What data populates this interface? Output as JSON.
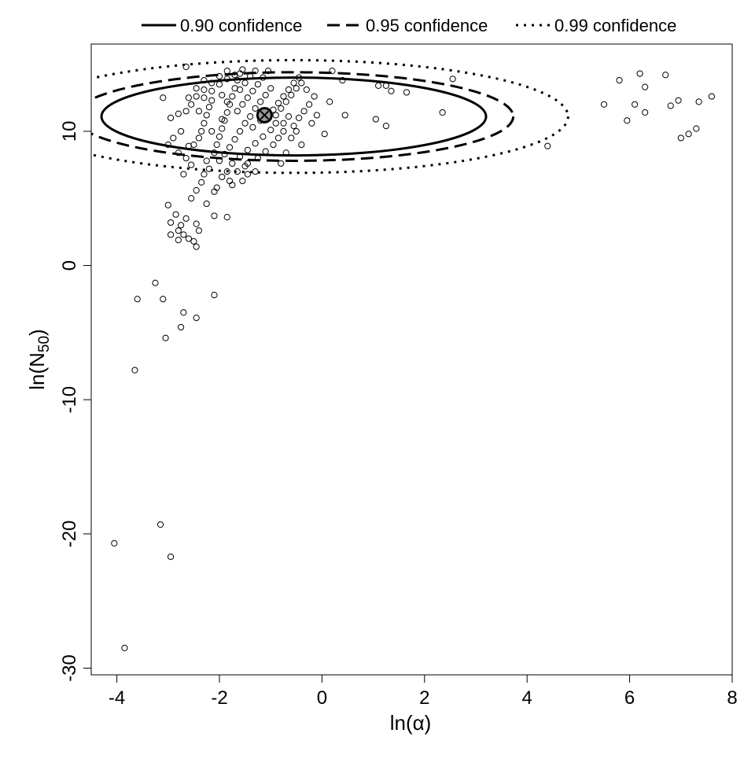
{
  "chart_data": {
    "type": "scatter",
    "title": "",
    "xlabel": "ln(α)",
    "ylabel": "ln(N50)",
    "ylabel_base": "ln(N",
    "ylabel_sub": "50",
    "ylabel_close": ")",
    "xlim": [
      -4.5,
      8.0
    ],
    "ylim": [
      -30.5,
      16.5
    ],
    "xticks": [
      -4,
      -2,
      0,
      2,
      4,
      6,
      8
    ],
    "yticks": [
      -30,
      -20,
      -10,
      0,
      10
    ],
    "xtick_labels": [
      "-4",
      "-2",
      "0",
      "2",
      "4",
      "6",
      "8"
    ],
    "ytick_labels": [
      "-30",
      "-20",
      "-10",
      "0",
      "10"
    ],
    "grid": false,
    "legend_position": "top",
    "legend": [
      {
        "label": "0.90 confidence",
        "style": "solid"
      },
      {
        "label": "0.95 confidence",
        "style": "dashed"
      },
      {
        "label": "0.99 confidence",
        "style": "dotted"
      }
    ],
    "mle": {
      "x": -1.12,
      "y": 11.2
    },
    "ellipses": [
      {
        "name": "0.90 confidence",
        "cx": -0.55,
        "cy": 11.1,
        "rx": 3.75,
        "ry": 2.9,
        "style": "solid"
      },
      {
        "name": "0.95 confidence",
        "cx": -0.55,
        "cy": 11.1,
        "rx": 4.28,
        "ry": 3.3,
        "style": "dashed"
      },
      {
        "name": "0.99 confidence",
        "cx": -0.55,
        "cy": 11.1,
        "rx": 5.35,
        "ry": 4.2,
        "style": "dotted"
      }
    ],
    "points": [
      [
        -3.85,
        -28.5
      ],
      [
        -4.05,
        -20.7
      ],
      [
        -3.15,
        -19.3
      ],
      [
        -2.95,
        -21.7
      ],
      [
        -3.65,
        -7.8
      ],
      [
        -3.05,
        -5.4
      ],
      [
        -2.75,
        -4.6
      ],
      [
        -2.7,
        -3.5
      ],
      [
        -2.45,
        -3.9
      ],
      [
        -2.1,
        -2.2
      ],
      [
        -3.6,
        -2.5
      ],
      [
        -3.1,
        -2.5
      ],
      [
        -3.25,
        -1.3
      ],
      [
        -3.0,
        4.5
      ],
      [
        -2.85,
        3.8
      ],
      [
        -2.95,
        3.2
      ],
      [
        -2.75,
        3.0
      ],
      [
        -2.65,
        3.5
      ],
      [
        -2.8,
        2.6
      ],
      [
        -2.7,
        2.3
      ],
      [
        -2.95,
        2.3
      ],
      [
        -2.8,
        1.9
      ],
      [
        -2.6,
        2.0
      ],
      [
        -2.5,
        1.8
      ],
      [
        -2.45,
        1.4
      ],
      [
        -2.4,
        2.6
      ],
      [
        -2.45,
        3.1
      ],
      [
        -2.1,
        3.7
      ],
      [
        -1.85,
        3.6
      ],
      [
        -2.25,
        4.6
      ],
      [
        -2.1,
        5.5
      ],
      [
        -1.8,
        6.3
      ],
      [
        -2.55,
        5.0
      ],
      [
        -2.45,
        5.6
      ],
      [
        -2.35,
        6.2
      ],
      [
        -2.3,
        6.8
      ],
      [
        -2.2,
        7.2
      ],
      [
        -2.25,
        7.8
      ],
      [
        -2.05,
        5.8
      ],
      [
        -1.95,
        6.6
      ],
      [
        -1.75,
        6.0
      ],
      [
        -1.85,
        7.0
      ],
      [
        -1.65,
        7.0
      ],
      [
        -1.55,
        6.3
      ],
      [
        -1.45,
        6.8
      ],
      [
        -1.5,
        7.4
      ],
      [
        -1.3,
        7.0
      ],
      [
        -2.7,
        6.8
      ],
      [
        -2.55,
        7.5
      ],
      [
        -2.65,
        8.0
      ],
      [
        -2.8,
        8.4
      ],
      [
        -2.6,
        8.9
      ],
      [
        -3.0,
        9.0
      ],
      [
        -2.9,
        9.5
      ],
      [
        -2.75,
        10.0
      ],
      [
        -2.95,
        11.0
      ],
      [
        -2.8,
        11.3
      ],
      [
        -2.65,
        11.5
      ],
      [
        -3.1,
        12.5
      ],
      [
        -2.65,
        14.8
      ],
      [
        -2.5,
        9.0
      ],
      [
        -2.4,
        9.5
      ],
      [
        -2.35,
        10.0
      ],
      [
        -2.3,
        10.6
      ],
      [
        -2.25,
        11.2
      ],
      [
        -2.2,
        11.8
      ],
      [
        -2.15,
        12.3
      ],
      [
        -2.1,
        8.4
      ],
      [
        -2.05,
        9.0
      ],
      [
        -2.0,
        9.6
      ],
      [
        -1.95,
        10.2
      ],
      [
        -1.9,
        10.8
      ],
      [
        -1.85,
        11.4
      ],
      [
        -1.8,
        12.0
      ],
      [
        -1.75,
        12.6
      ],
      [
        -1.7,
        13.2
      ],
      [
        -1.65,
        13.8
      ],
      [
        -1.6,
        14.3
      ],
      [
        -1.55,
        14.6
      ],
      [
        -2.0,
        7.8
      ],
      [
        -1.9,
        8.3
      ],
      [
        -1.8,
        8.8
      ],
      [
        -1.7,
        9.4
      ],
      [
        -1.6,
        10.0
      ],
      [
        -1.5,
        10.6
      ],
      [
        -1.4,
        11.1
      ],
      [
        -1.3,
        11.7
      ],
      [
        -1.2,
        12.2
      ],
      [
        -1.1,
        12.7
      ],
      [
        -1.0,
        13.2
      ],
      [
        -1.75,
        7.6
      ],
      [
        -1.6,
        8.1
      ],
      [
        -1.45,
        8.6
      ],
      [
        -1.3,
        9.1
      ],
      [
        -1.15,
        9.6
      ],
      [
        -1.0,
        10.1
      ],
      [
        -0.9,
        10.6
      ],
      [
        -1.45,
        7.6
      ],
      [
        -1.25,
        8.0
      ],
      [
        -1.1,
        8.5
      ],
      [
        -0.95,
        9.0
      ],
      [
        -0.85,
        9.5
      ],
      [
        -0.75,
        10.0
      ],
      [
        -2.3,
        12.5
      ],
      [
        -2.15,
        13.0
      ],
      [
        -2.0,
        13.5
      ],
      [
        -1.85,
        13.9
      ],
      [
        -1.7,
        14.2
      ],
      [
        -1.95,
        12.7
      ],
      [
        -1.85,
        12.2
      ],
      [
        -1.65,
        11.5
      ],
      [
        -1.55,
        12.0
      ],
      [
        -1.45,
        12.5
      ],
      [
        -1.35,
        13.0
      ],
      [
        -1.25,
        13.5
      ],
      [
        -1.15,
        14.0
      ],
      [
        -1.05,
        14.5
      ],
      [
        -1.6,
        13.1
      ],
      [
        -1.5,
        13.6
      ],
      [
        -1.4,
        14.1
      ],
      [
        -1.3,
        14.5
      ],
      [
        -0.95,
        11.6
      ],
      [
        -0.85,
        12.1
      ],
      [
        -0.75,
        12.6
      ],
      [
        -0.65,
        13.1
      ],
      [
        -0.55,
        13.6
      ],
      [
        -0.45,
        14.0
      ],
      [
        -0.9,
        11.2
      ],
      [
        -0.8,
        11.7
      ],
      [
        -0.7,
        12.2
      ],
      [
        -0.6,
        12.7
      ],
      [
        -0.5,
        13.2
      ],
      [
        -0.4,
        13.6
      ],
      [
        -0.3,
        13.1
      ],
      [
        -0.75,
        10.6
      ],
      [
        -0.65,
        11.1
      ],
      [
        -0.55,
        10.4
      ],
      [
        -0.45,
        11.0
      ],
      [
        -0.35,
        11.5
      ],
      [
        -0.25,
        12.0
      ],
      [
        -0.15,
        12.6
      ],
      [
        -0.6,
        9.5
      ],
      [
        -0.5,
        10.0
      ],
      [
        -0.4,
        9.0
      ],
      [
        -0.2,
        10.6
      ],
      [
        -0.1,
        11.2
      ],
      [
        -0.7,
        8.4
      ],
      [
        -0.8,
        7.6
      ],
      [
        -1.95,
        10.9
      ],
      [
        -2.15,
        10.0
      ],
      [
        -1.35,
        10.3
      ],
      [
        -1.2,
        10.8
      ],
      [
        -1.05,
        11.3
      ],
      [
        -2.4,
        11.5
      ],
      [
        -2.55,
        12.0
      ],
      [
        -2.45,
        12.6
      ],
      [
        -2.3,
        13.1
      ],
      [
        -2.15,
        13.6
      ],
      [
        -2.0,
        14.1
      ],
      [
        -1.85,
        14.5
      ],
      [
        -2.6,
        12.5
      ],
      [
        -2.45,
        13.2
      ],
      [
        -2.3,
        13.8
      ],
      [
        0.2,
        14.5
      ],
      [
        0.15,
        12.2
      ],
      [
        0.4,
        13.8
      ],
      [
        0.45,
        11.2
      ],
      [
        0.05,
        9.8
      ],
      [
        1.1,
        13.4
      ],
      [
        1.25,
        13.4
      ],
      [
        1.35,
        13.0
      ],
      [
        1.65,
        12.9
      ],
      [
        1.05,
        10.9
      ],
      [
        1.25,
        10.4
      ],
      [
        2.35,
        11.4
      ],
      [
        2.55,
        13.9
      ],
      [
        4.4,
        8.9
      ],
      [
        5.5,
        12.0
      ],
      [
        5.8,
        13.8
      ],
      [
        5.95,
        10.8
      ],
      [
        6.1,
        12.0
      ],
      [
        6.2,
        14.3
      ],
      [
        6.3,
        13.3
      ],
      [
        6.3,
        11.4
      ],
      [
        6.7,
        14.2
      ],
      [
        6.8,
        11.9
      ],
      [
        6.95,
        12.3
      ],
      [
        7.0,
        9.5
      ],
      [
        7.15,
        9.8
      ],
      [
        7.3,
        10.2
      ],
      [
        7.35,
        12.2
      ],
      [
        7.6,
        12.6
      ]
    ]
  }
}
